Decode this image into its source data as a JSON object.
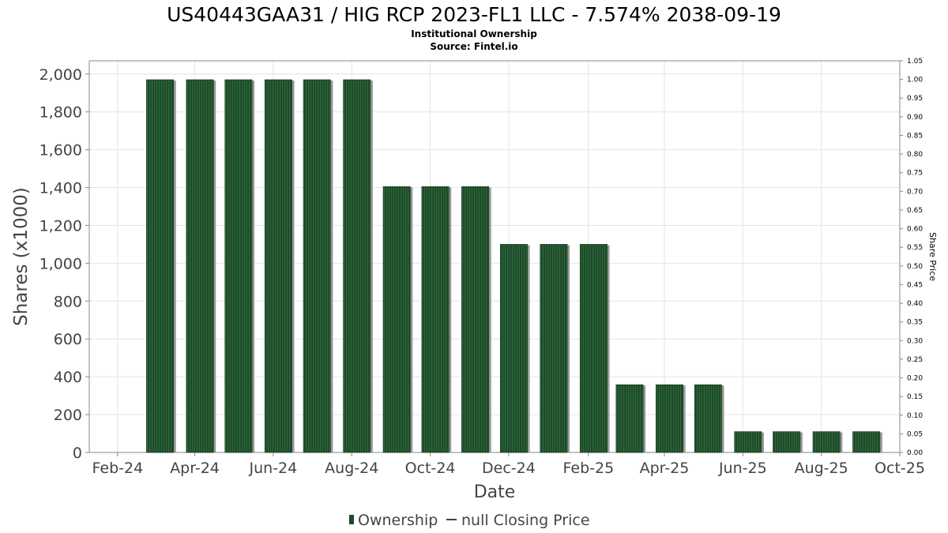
{
  "chart_data": {
    "type": "bar",
    "title": "US40443GAA31 / HIG RCP 2023-FL1 LLC - 7.574% 2038-09-19",
    "subtitle_lines": [
      "Institutional Ownership",
      "Source: Fintel.io"
    ],
    "xlabel": "Date",
    "ylabel": "Shares (x1000)",
    "y2label": "Share Price",
    "x_tick_labels": [
      "Feb-24",
      "Apr-24",
      "Jun-24",
      "Aug-24",
      "Oct-24",
      "Dec-24",
      "Feb-25",
      "Apr-25",
      "Jun-25",
      "Aug-25",
      "Oct-25"
    ],
    "y_tick_labels": [
      "0",
      "200",
      "400",
      "600",
      "800",
      "1,000",
      "1,200",
      "1,400",
      "1,600",
      "1,800",
      "2,000"
    ],
    "y2_tick_labels": [
      "0.00",
      "0.05",
      "0.10",
      "0.15",
      "0.20",
      "0.25",
      "0.30",
      "0.35",
      "0.40",
      "0.45",
      "0.50",
      "0.55",
      "0.60",
      "0.65",
      "0.70",
      "0.75",
      "0.80",
      "0.85",
      "0.90",
      "0.95",
      "1.00",
      "1.05"
    ],
    "ylim": [
      0,
      2070
    ],
    "y2lim": [
      0,
      1.05
    ],
    "xlim": [
      "2024-01-10",
      "2025-10-01"
    ],
    "grid": true,
    "bar_color": "#1e4a2a",
    "series": [
      {
        "name": "Ownership",
        "x": [
          "2024-03-05",
          "2024-04-05",
          "2024-05-05",
          "2024-06-05",
          "2024-07-05",
          "2024-08-05",
          "2024-09-05",
          "2024-10-05",
          "2024-11-05",
          "2024-12-05",
          "2025-01-05",
          "2025-02-05",
          "2025-03-05",
          "2025-04-05",
          "2025-05-05",
          "2025-06-05",
          "2025-07-05",
          "2025-08-05",
          "2025-09-05"
        ],
        "values": [
          1970,
          1970,
          1970,
          1970,
          1970,
          1970,
          1405,
          1405,
          1405,
          1100,
          1100,
          1100,
          358,
          358,
          358,
          110,
          110,
          110,
          110
        ]
      }
    ],
    "legend": {
      "position": "bottom",
      "entries": [
        {
          "label": "Ownership",
          "marker": "bar"
        },
        {
          "label": "null Closing Price",
          "marker": "line"
        }
      ]
    }
  }
}
